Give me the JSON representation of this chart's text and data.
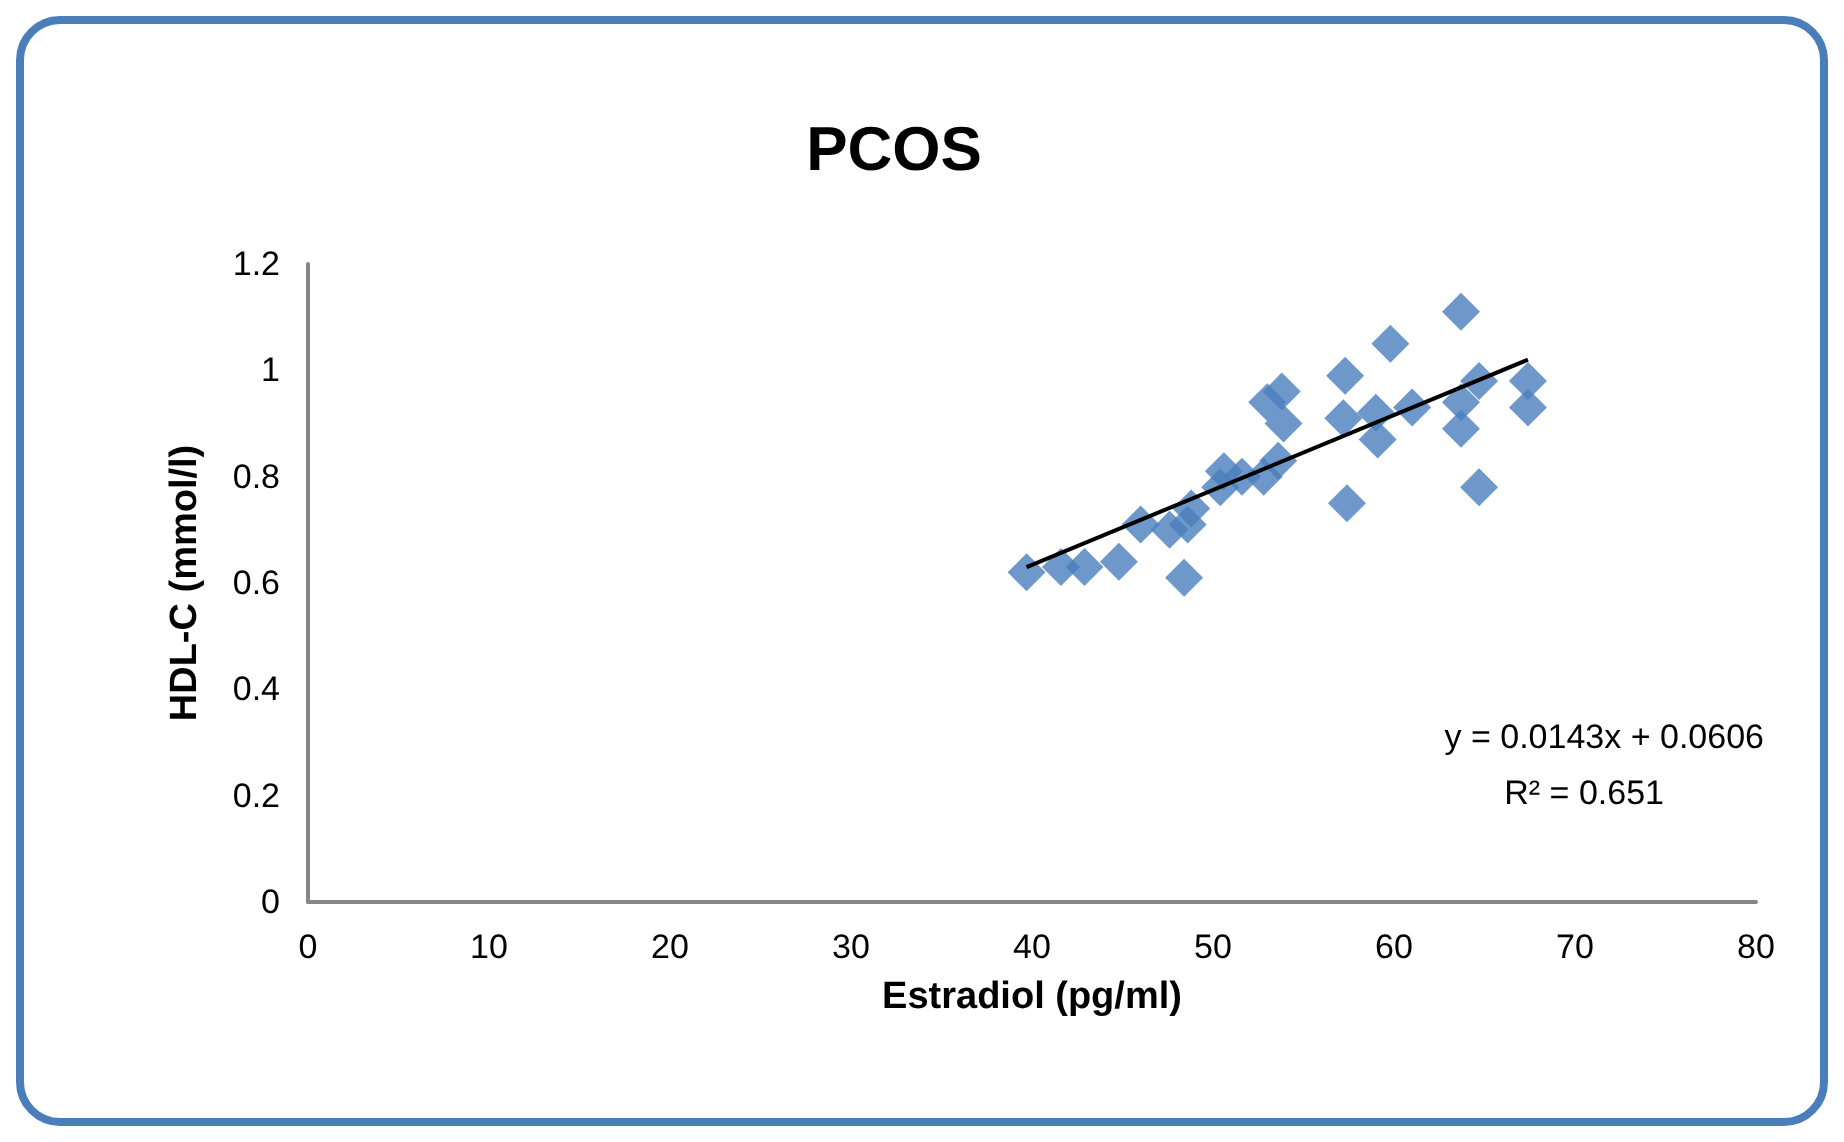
{
  "chart_data": {
    "type": "scatter",
    "title": "PCOS",
    "xlabel": "Estradiol (pg/ml)",
    "ylabel": "HDL-C (mmol/l)",
    "xlim": [
      0,
      80
    ],
    "xticks": [
      0,
      10,
      20,
      30,
      40,
      50,
      60,
      70,
      80
    ],
    "ylim": [
      0,
      1.2
    ],
    "yticks": [
      0,
      0.2,
      0.4,
      0.6,
      0.8,
      1,
      1.2
    ],
    "grid": false,
    "marker": "diamond",
    "annotations": [
      "y = 0.0143x + 0.0606",
      "R² = 0.651"
    ],
    "series": [
      {
        "color": "#4a7ebb",
        "x": [
          39.7,
          41.6,
          42.9,
          44.8,
          48.4,
          46.0,
          47.6,
          48.6,
          48.8,
          50.4,
          50.6,
          51.6,
          52.8,
          53.6,
          53.0,
          53.8,
          53.9,
          57.3,
          57.2,
          57.4,
          59.0,
          59.1,
          59.8,
          61.0,
          63.7,
          63.7,
          63.7,
          64.7,
          64.7,
          67.4,
          67.4
        ],
        "values": [
          0.62,
          0.63,
          0.63,
          0.64,
          0.61,
          0.71,
          0.7,
          0.71,
          0.74,
          0.78,
          0.81,
          0.8,
          0.8,
          0.83,
          0.94,
          0.96,
          0.9,
          0.99,
          0.91,
          0.75,
          0.92,
          0.87,
          1.05,
          0.93,
          1.11,
          0.94,
          0.89,
          0.78,
          0.98,
          0.98,
          0.93
        ]
      },
      {
        "type": "line",
        "color": "#000000",
        "marker": "none",
        "x": [
          39.7,
          67.4
        ],
        "values": [
          0.63,
          1.02
        ]
      }
    ]
  }
}
